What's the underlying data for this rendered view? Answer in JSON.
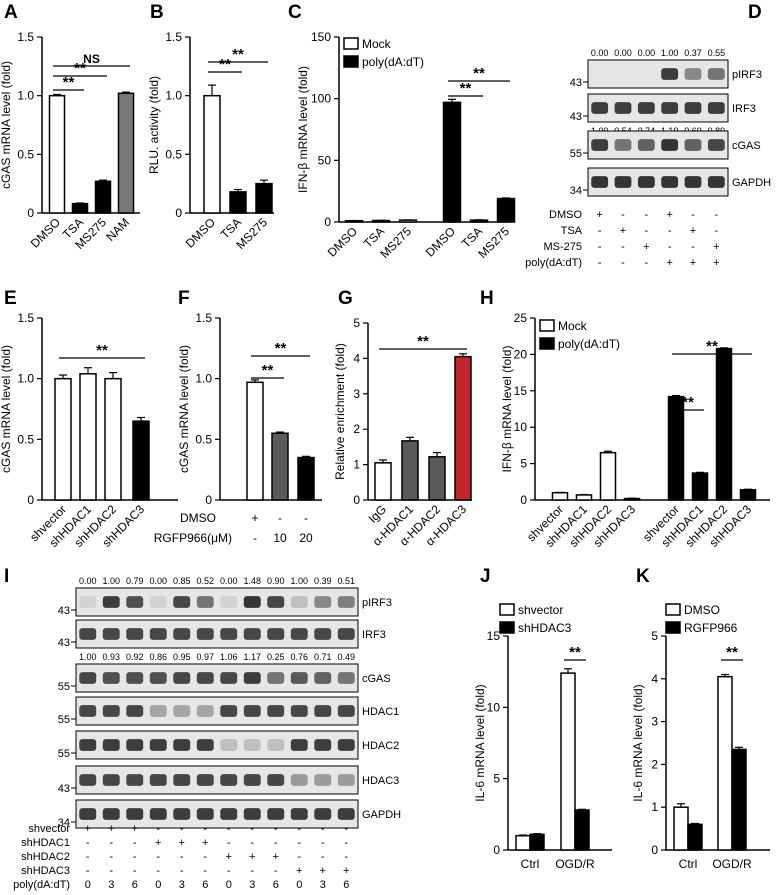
{
  "panel_labels": {
    "A": "A",
    "B": "B",
    "C": "C",
    "D": "D",
    "E": "E",
    "F": "F",
    "G": "G",
    "H": "H",
    "I": "I",
    "J": "J",
    "K": "K"
  },
  "colors": {
    "white": "#ffffff",
    "black": "#000000",
    "dark_gray": "#5a5a5a",
    "gray": "#7a7a7a",
    "red": "#c1272d",
    "blot_band": "#2a2a2a",
    "blot_bg": "#e6e6e6"
  },
  "chart_data": [
    {
      "id": "A",
      "type": "bar",
      "ylabel": "cGAS mRNA level (fold)",
      "ylim": [
        0,
        1.5
      ],
      "yticks": [
        0,
        0.5,
        1.0,
        1.5
      ],
      "ytick_labels": [
        "0",
        "0.5",
        "1.0",
        "1.5"
      ],
      "categories": [
        "DMSO",
        "TSA",
        "MS275",
        "NAM"
      ],
      "values": [
        1.0,
        0.08,
        0.27,
        1.02
      ],
      "errors": [
        0.01,
        0.005,
        0.01,
        0.01
      ],
      "colors": [
        "#ffffff",
        "#000000",
        "#000000",
        "#7a7a7a"
      ],
      "significance": [
        {
          "from": 0,
          "to": 1,
          "label": "**"
        },
        {
          "from": 0,
          "to": 2,
          "label": "**"
        },
        {
          "from": 0,
          "to": 3,
          "label": "NS"
        }
      ]
    },
    {
      "id": "B",
      "type": "bar",
      "ylabel": "RLU. activity (fold)",
      "ylim": [
        0,
        1.5
      ],
      "yticks": [
        0,
        0.5,
        1.0,
        1.5
      ],
      "ytick_labels": [
        "0",
        "0.5",
        "1.0",
        "1.5"
      ],
      "categories": [
        "DMSO",
        "TSA",
        "MS275"
      ],
      "values": [
        1.0,
        0.18,
        0.25
      ],
      "errors": [
        0.09,
        0.02,
        0.03
      ],
      "colors": [
        "#ffffff",
        "#000000",
        "#000000"
      ],
      "significance": [
        {
          "from": 0,
          "to": 1,
          "label": "**"
        },
        {
          "from": 0,
          "to": 2,
          "label": "**"
        }
      ]
    },
    {
      "id": "C",
      "type": "bar",
      "ylabel": "IFN-β mRNA level (fold)",
      "ylim": [
        0,
        150
      ],
      "yticks": [
        0,
        50,
        100,
        150
      ],
      "ytick_labels": [
        "0",
        "50",
        "100",
        "150"
      ],
      "categories": [
        "DMSO",
        "TSA",
        "MS275",
        "DMSO",
        "TSA",
        "MS275"
      ],
      "series": [
        {
          "name": "Mock",
          "values": [
            1.0,
            1.2,
            1.5,
            null,
            null,
            null
          ]
        },
        {
          "name": "poly(dA:dT)",
          "values": [
            null,
            null,
            null,
            97,
            1.5,
            19
          ]
        }
      ],
      "values": [
        1.0,
        1.2,
        1.5,
        97,
        1.5,
        19
      ],
      "errors": [
        0.2,
        0.2,
        0.2,
        2.5,
        0.3,
        0.5
      ],
      "colors": [
        "#ffffff",
        "#ffffff",
        "#ffffff",
        "#000000",
        "#000000",
        "#000000"
      ],
      "significance": [
        {
          "from": 3,
          "to": 4,
          "label": "**"
        },
        {
          "from": 3,
          "to": 5,
          "label": "**"
        }
      ],
      "legend": [
        {
          "label": "Mock",
          "color": "#ffffff"
        },
        {
          "label": "poly(dA:dT)",
          "color": "#000000"
        }
      ]
    },
    {
      "id": "E",
      "type": "bar",
      "ylabel": "cGAS mRNA level (fold)",
      "ylim": [
        0,
        1.5
      ],
      "yticks": [
        0,
        0.5,
        1.0,
        1.5
      ],
      "ytick_labels": [
        "0",
        "0.5",
        "1.0",
        "1.5"
      ],
      "categories": [
        "shvector",
        "shHDAC1",
        "shHDAC2",
        "shHDAC3"
      ],
      "values": [
        1.0,
        1.04,
        1.0,
        0.65
      ],
      "errors": [
        0.03,
        0.05,
        0.05,
        0.03
      ],
      "colors": [
        "#ffffff",
        "#ffffff",
        "#ffffff",
        "#000000"
      ],
      "significance": [
        {
          "from": 0,
          "to": 3,
          "label": "**"
        }
      ]
    },
    {
      "id": "F",
      "type": "bar",
      "ylabel": "cGAS mRNA level (fold)",
      "ylim": [
        0,
        1.5
      ],
      "yticks": [
        0,
        0.5,
        1.0,
        1.5
      ],
      "ytick_labels": [
        "0",
        "0.5",
        "1.0",
        "1.5"
      ],
      "categories": [
        "",
        "",
        ""
      ],
      "values": [
        0.97,
        0.55,
        0.35
      ],
      "errors": [
        0.02,
        0.01,
        0.01
      ],
      "colors": [
        "#ffffff",
        "#5a5a5a",
        "#000000"
      ],
      "significance": [
        {
          "from": 0,
          "to": 1,
          "label": "**"
        },
        {
          "from": 0,
          "to": 2,
          "label": "**"
        }
      ],
      "treatment_rows": [
        {
          "label": "DMSO",
          "values": [
            "+",
            "-",
            "-"
          ]
        },
        {
          "label": "RGFP966(μM)",
          "values": [
            "-",
            "10",
            "20"
          ]
        }
      ]
    },
    {
      "id": "G",
      "type": "bar",
      "ylabel": "Relative enrichment (fold)",
      "ylim": [
        0,
        5
      ],
      "yticks": [
        0,
        1,
        2,
        3,
        4,
        5
      ],
      "ytick_labels": [
        "0",
        "1",
        "2",
        "3",
        "4",
        "5"
      ],
      "categories": [
        "IgG",
        "α-HDAC1",
        "α-HDAC2",
        "α-HDAC3"
      ],
      "values": [
        1.05,
        1.67,
        1.22,
        4.05
      ],
      "errors": [
        0.08,
        0.1,
        0.12,
        0.08
      ],
      "colors": [
        "#ffffff",
        "#5a5a5a",
        "#5a5a5a",
        "#c1272d"
      ],
      "significance": [
        {
          "from": 0,
          "to": 3,
          "label": "**"
        }
      ]
    },
    {
      "id": "H",
      "type": "bar",
      "ylabel": "IFN-β mRNA level (fold)",
      "ylim": [
        0,
        25
      ],
      "yticks": [
        0,
        5,
        10,
        15,
        20,
        25
      ],
      "ytick_labels": [
        "0",
        "5",
        "10",
        "15",
        "20",
        "25"
      ],
      "categories": [
        "shvector",
        "shHDAC1",
        "shHDAC2",
        "shHDAC3",
        "shvector",
        "shHDAC1",
        "shHDAC2",
        "shHDAC3"
      ],
      "series": [
        {
          "name": "Mock",
          "values": [
            1.0,
            0.7,
            6.5,
            0.2,
            null,
            null,
            null,
            null
          ]
        },
        {
          "name": "poly(dA:dT)",
          "values": [
            null,
            null,
            null,
            null,
            14.2,
            3.7,
            20.8,
            1.4
          ]
        }
      ],
      "values": [
        1.0,
        0.7,
        6.5,
        0.2,
        14.2,
        3.7,
        20.8,
        1.4
      ],
      "errors": [
        0.05,
        0.05,
        0.2,
        0.05,
        0.15,
        0.1,
        0.1,
        0.08
      ],
      "colors": [
        "#ffffff",
        "#ffffff",
        "#ffffff",
        "#ffffff",
        "#000000",
        "#000000",
        "#000000",
        "#000000"
      ],
      "significance": [
        {
          "from": 4,
          "to": 5,
          "label": "**"
        },
        {
          "from": 4,
          "to": 7,
          "label": "**"
        }
      ],
      "legend": [
        {
          "label": "Mock",
          "color": "#ffffff"
        },
        {
          "label": "poly(dA:dT)",
          "color": "#000000"
        }
      ]
    },
    {
      "id": "J",
      "type": "bar",
      "ylabel": "IL-6 mRNA level (fold)",
      "ylim": [
        0,
        15
      ],
      "yticks": [
        0,
        5,
        10,
        15
      ],
      "ytick_labels": [
        "0",
        "5",
        "10",
        "15"
      ],
      "groups": [
        "Ctrl",
        "OGD/R"
      ],
      "series": [
        {
          "name": "shvector",
          "values": [
            1.0,
            12.4
          ]
        },
        {
          "name": "shHDAC3",
          "values": [
            1.1,
            2.8
          ]
        }
      ],
      "values": [
        1.0,
        1.1,
        12.4,
        2.8
      ],
      "errors": [
        0.05,
        0.05,
        0.3,
        0.05
      ],
      "colors": [
        "#ffffff",
        "#000000",
        "#ffffff",
        "#000000"
      ],
      "significance": [
        {
          "from": 2,
          "to": 3,
          "label": "**"
        }
      ],
      "legend": [
        {
          "label": "shvector",
          "color": "#ffffff"
        },
        {
          "label": "shHDAC3",
          "color": "#000000"
        }
      ]
    },
    {
      "id": "K",
      "type": "bar",
      "ylabel": "IL-6 mRNA level (fold)",
      "ylim": [
        0,
        5
      ],
      "yticks": [
        0,
        1,
        2,
        3,
        4,
        5
      ],
      "ytick_labels": [
        "0",
        "1",
        "2",
        "3",
        "4",
        "5"
      ],
      "groups": [
        "Ctrl",
        "OGD/R"
      ],
      "series": [
        {
          "name": "DMSO",
          "values": [
            1.0,
            4.05
          ]
        },
        {
          "name": "RGFP966",
          "values": [
            0.6,
            2.35
          ]
        }
      ],
      "values": [
        1.0,
        0.6,
        4.05,
        2.35
      ],
      "errors": [
        0.08,
        0.02,
        0.05,
        0.05
      ],
      "colors": [
        "#ffffff",
        "#000000",
        "#ffffff",
        "#000000"
      ],
      "significance": [
        {
          "from": 2,
          "to": 3,
          "label": "**"
        }
      ],
      "legend": [
        {
          "label": "DMSO",
          "color": "#ffffff"
        },
        {
          "label": "RGFP966",
          "color": "#000000"
        }
      ]
    }
  ],
  "blots": {
    "D": {
      "lanes": 6,
      "top_numbers": [
        "0.00",
        "0.00",
        "0.00",
        "1.00",
        "0.37",
        "0.55"
      ],
      "mid_numbers": [
        "1.00",
        "0.54",
        "0.74",
        "1.19",
        "0.69",
        "0.89"
      ],
      "bands": [
        {
          "name": "pIRF3",
          "marker": "43",
          "intensity": [
            0.0,
            0.0,
            0.0,
            0.9,
            0.5,
            0.6
          ]
        },
        {
          "name": "IRF3",
          "marker": "43",
          "intensity": [
            0.9,
            0.9,
            0.9,
            0.9,
            0.9,
            0.9
          ]
        },
        {
          "name": "cGAS",
          "marker": "55",
          "intensity": [
            0.9,
            0.6,
            0.7,
            0.95,
            0.7,
            0.85
          ]
        },
        {
          "name": "GAPDH",
          "marker": "34",
          "intensity": [
            0.95,
            0.95,
            0.95,
            0.95,
            0.95,
            0.95
          ]
        }
      ],
      "treatments": [
        {
          "label": "DMSO",
          "values": [
            "+",
            "-",
            "-",
            "+",
            "-",
            "-"
          ]
        },
        {
          "label": "TSA",
          "values": [
            "-",
            "+",
            "-",
            "-",
            "+",
            "-"
          ]
        },
        {
          "label": "MS-275",
          "values": [
            "-",
            "-",
            "+",
            "-",
            "-",
            "+"
          ]
        },
        {
          "label": "poly(dA:dT)",
          "values": [
            "-",
            "-",
            "-",
            "+",
            "+",
            "+"
          ]
        }
      ]
    },
    "I": {
      "lanes": 12,
      "top_numbers": [
        "0.00",
        "1.00",
        "0.79",
        "0.00",
        "0.85",
        "0.52",
        "0.00",
        "1.48",
        "0.90",
        "1.00",
        "0.39",
        "0.51"
      ],
      "mid_numbers": [
        "1.00",
        "0.93",
        "0.92",
        "0.86",
        "0.95",
        "0.97",
        "1.06",
        "1.17",
        "0.25",
        "0.76",
        "0.71",
        "0.49"
      ],
      "bands": [
        {
          "name": "pIRF3",
          "marker": "43",
          "intensity": [
            0.1,
            0.9,
            0.8,
            0.1,
            0.85,
            0.6,
            0.1,
            0.95,
            0.85,
            0.2,
            0.5,
            0.55
          ]
        },
        {
          "name": "IRF3",
          "marker": "43",
          "intensity": [
            0.85,
            0.85,
            0.85,
            0.85,
            0.85,
            0.85,
            0.85,
            0.85,
            0.85,
            0.85,
            0.85,
            0.85
          ]
        },
        {
          "name": "cGAS",
          "marker": "55",
          "intensity": [
            0.85,
            0.8,
            0.8,
            0.8,
            0.85,
            0.85,
            0.85,
            0.9,
            0.6,
            0.75,
            0.7,
            0.6
          ]
        },
        {
          "name": "HDAC1",
          "marker": "55",
          "intensity": [
            0.85,
            0.85,
            0.85,
            0.35,
            0.35,
            0.35,
            0.85,
            0.85,
            0.85,
            0.85,
            0.85,
            0.85
          ]
        },
        {
          "name": "HDAC2",
          "marker": "55",
          "intensity": [
            0.9,
            0.9,
            0.9,
            0.9,
            0.9,
            0.9,
            0.2,
            0.2,
            0.2,
            0.9,
            0.9,
            0.9
          ]
        },
        {
          "name": "HDAC3",
          "marker": "43",
          "intensity": [
            0.85,
            0.85,
            0.85,
            0.85,
            0.85,
            0.85,
            0.85,
            0.85,
            0.85,
            0.4,
            0.4,
            0.4
          ]
        },
        {
          "name": "GAPDH",
          "marker": "34",
          "intensity": [
            0.9,
            0.9,
            0.9,
            0.9,
            0.9,
            0.9,
            0.9,
            0.9,
            0.9,
            0.9,
            0.9,
            0.9
          ]
        }
      ],
      "treatments": [
        {
          "label": "shvector",
          "values": [
            "+",
            "+",
            "+",
            "-",
            "-",
            "-",
            "-",
            "-",
            "-",
            "-",
            "-",
            "-"
          ]
        },
        {
          "label": "shHDAC1",
          "values": [
            "-",
            "-",
            "-",
            "+",
            "+",
            "+",
            "-",
            "-",
            "-",
            "-",
            "-",
            "-"
          ]
        },
        {
          "label": "shHDAC2",
          "values": [
            "-",
            "-",
            "-",
            "-",
            "-",
            "-",
            "+",
            "+",
            "+",
            "-",
            "-",
            "-"
          ]
        },
        {
          "label": "shHDAC3",
          "values": [
            "-",
            "-",
            "-",
            "-",
            "-",
            "-",
            "-",
            "-",
            "-",
            "+",
            "+",
            "+"
          ]
        },
        {
          "label": "poly(dA:dT)",
          "values": [
            "0",
            "3",
            "6",
            "0",
            "3",
            "6",
            "0",
            "3",
            "6",
            "0",
            "3",
            "6"
          ]
        }
      ]
    }
  }
}
